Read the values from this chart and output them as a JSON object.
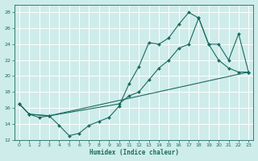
{
  "xlabel": "Humidex (Indice chaleur)",
  "background_color": "#ceecea",
  "grid_color": "#ffffff",
  "line_color": "#1a6b60",
  "xlim": [
    -0.5,
    23.5
  ],
  "ylim": [
    12,
    29
  ],
  "xticks": [
    0,
    1,
    2,
    3,
    4,
    5,
    6,
    7,
    8,
    9,
    10,
    11,
    12,
    13,
    14,
    15,
    16,
    17,
    18,
    19,
    20,
    21,
    22,
    23
  ],
  "yticks": [
    12,
    14,
    16,
    18,
    20,
    22,
    24,
    26,
    28
  ],
  "curve1_x": [
    0,
    1,
    2,
    3,
    4,
    5,
    6,
    7,
    8,
    9,
    10,
    11,
    12,
    13,
    14,
    15,
    16,
    17,
    18,
    19,
    20,
    21,
    22,
    23
  ],
  "curve1_y": [
    16.5,
    15.2,
    14.8,
    15.0,
    13.8,
    12.5,
    12.8,
    13.8,
    14.3,
    14.8,
    16.2,
    19.0,
    21.2,
    24.2,
    24.0,
    24.8,
    26.5,
    28.0,
    27.3,
    24.0,
    22.0,
    21.0,
    20.5,
    20.5
  ],
  "curve2_x": [
    0,
    1,
    3,
    10,
    11,
    12,
    13,
    14,
    15,
    16,
    17,
    18,
    19,
    20,
    21,
    22,
    23
  ],
  "curve2_y": [
    16.5,
    15.2,
    15.0,
    16.5,
    17.5,
    18.0,
    19.5,
    21.0,
    22.0,
    23.5,
    24.0,
    27.3,
    24.0,
    24.0,
    22.0,
    25.3,
    20.5
  ],
  "curve3_x": [
    0,
    1,
    3,
    23
  ],
  "curve3_y": [
    16.5,
    15.2,
    15.0,
    20.5
  ]
}
